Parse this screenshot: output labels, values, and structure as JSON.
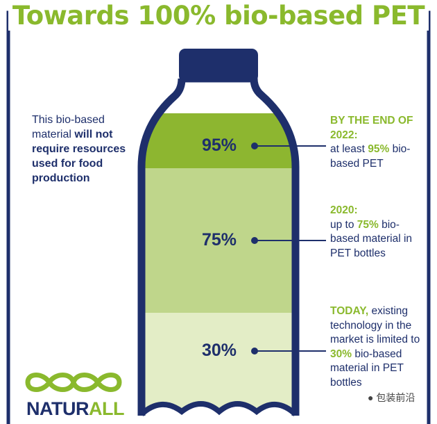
{
  "title": "Towards 100% bio-based PET",
  "left_note": {
    "part1": "This bio-based material ",
    "part2": "will not require resources used for food production"
  },
  "levels": [
    {
      "percent": "95%",
      "value": 95,
      "highlight": "BY THE END OF 2022:",
      "text_before": "at least ",
      "highlight2": "95%",
      "text_after": " bio-based PET"
    },
    {
      "percent": "75%",
      "value": 75,
      "highlight": "2020:",
      "text_before": "up to ",
      "highlight2": "75%",
      "text_after": " bio-based material in PET bottles"
    },
    {
      "percent": "30%",
      "value": 30,
      "highlight": "TODAY,",
      "text_before": " existing technology in the market is limited to ",
      "highlight2": "30%",
      "text_after": " bio-based material in PET bottles"
    }
  ],
  "logo": {
    "text_main": "NATUR",
    "text_accent": "ALL"
  },
  "watermark": "包装前沿",
  "colors": {
    "accent": "#8ab92d",
    "navy": "#1e2f6b",
    "fill_dark": "#8db630",
    "fill_mid": "#bfd68b",
    "fill_light": "#e3edc6"
  }
}
